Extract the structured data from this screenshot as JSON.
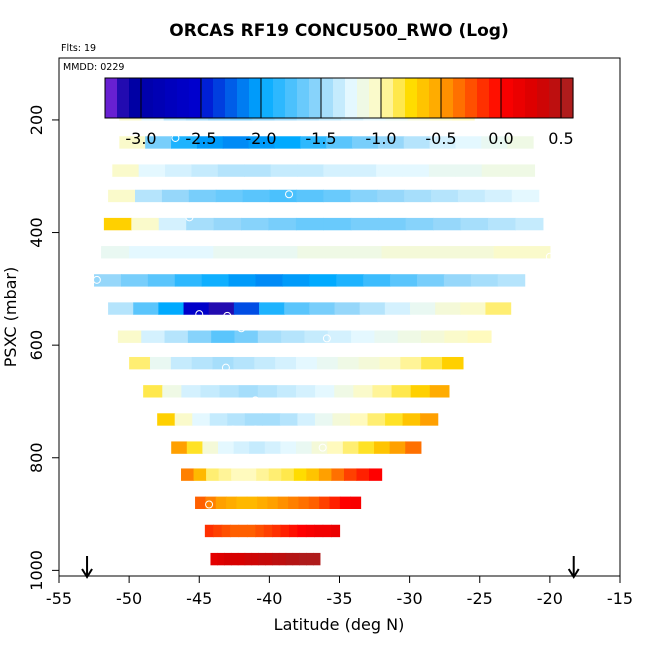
{
  "chart_data": {
    "type": "heatmap",
    "title": "ORCAS RF19 CONCU500_RWO (Log)",
    "flights_label": "Flts: 19",
    "date_label": "MMDD: 0229",
    "xlabel": "Latitude (deg N)",
    "ylabel": "PSXC (mbar)",
    "xlim": [
      -55,
      -15
    ],
    "ylim": [
      1010,
      90
    ],
    "xticks": [
      -55,
      -50,
      -45,
      -40,
      -35,
      -30,
      -25,
      -20,
      -15
    ],
    "yticks": [
      200,
      400,
      600,
      800,
      1000
    ],
    "colorbar": {
      "range": [
        -3.3,
        0.6
      ],
      "ticks": [
        "-3.0",
        "-2.5",
        "-2.0",
        "-1.5",
        "-1.0",
        "-0.5",
        "0.0",
        "0.5"
      ],
      "tick_values": [
        -3.0,
        -2.5,
        -2.0,
        -1.5,
        -1.0,
        -0.5,
        0.0,
        0.5
      ]
    },
    "range_markers_lat": [
      -53,
      -18.3
    ],
    "rows": [
      {
        "p": 190,
        "lat_min": -50.7,
        "lat_max": -25.4,
        "values": [
          -1.05,
          -1.25,
          -1.4,
          -1.45,
          -1.5,
          -1.55,
          -1.5,
          -1.45,
          -1.4,
          -1.35,
          -1.3,
          -1.25,
          -1.2,
          -1.1,
          -1.05,
          -1.0
        ]
      },
      {
        "p": 240,
        "lat_min": -50.7,
        "lat_max": -21.2,
        "values": [
          -1.05,
          -1.6,
          -1.9,
          -2.05,
          -2.1,
          -2.05,
          -2.0,
          -1.85,
          -1.7,
          -1.6,
          -1.5,
          -1.4,
          -1.3,
          -1.25,
          -1.2,
          -1.15
        ]
      },
      {
        "p": 290,
        "lat_min": -51.2,
        "lat_max": -21.1,
        "values": [
          -1.05,
          -1.25,
          -1.3,
          -1.35,
          -1.4,
          -1.4,
          -1.35,
          -1.35,
          -1.3,
          -1.3,
          -1.25,
          -1.25,
          -1.2,
          -1.2,
          -1.15,
          -1.15
        ]
      },
      {
        "p": 335,
        "lat_min": -51.5,
        "lat_max": -20.8,
        "values": [
          -1.05,
          -1.4,
          -1.5,
          -1.6,
          -1.65,
          -1.7,
          -1.75,
          -1.7,
          -1.65,
          -1.55,
          -1.5,
          -1.45,
          -1.4,
          -1.35,
          -1.3,
          -1.25
        ]
      },
      {
        "p": 385,
        "lat_min": -51.8,
        "lat_max": -20.5,
        "values": [
          -0.7,
          -1.05,
          -1.3,
          -1.45,
          -1.5,
          -1.55,
          -1.6,
          -1.65,
          -1.65,
          -1.6,
          -1.6,
          -1.55,
          -1.5,
          -1.45,
          -1.4,
          -1.35
        ]
      },
      {
        "p": 435,
        "lat_min": -52.0,
        "lat_max": -20.0,
        "values": [
          -1.2,
          -1.25,
          -1.25,
          -1.25,
          -1.2,
          -1.2,
          -1.2,
          -1.15,
          -1.15,
          -1.15,
          -1.1,
          -1.1,
          -1.1,
          -1.1,
          -1.05,
          -1.05
        ]
      },
      {
        "p": 485,
        "lat_min": -52.5,
        "lat_max": -21.8,
        "values": [
          -1.5,
          -1.6,
          -1.7,
          -1.85,
          -1.95,
          -2.05,
          -2.1,
          -2.05,
          -2.0,
          -1.9,
          -1.8,
          -1.7,
          -1.6,
          -1.5,
          -1.45,
          -1.4
        ]
      },
      {
        "p": 535,
        "lat_min": -51.5,
        "lat_max": -22.8,
        "values": [
          -1.4,
          -1.7,
          -2.0,
          -2.6,
          -3.15,
          -2.3,
          -1.9,
          -1.7,
          -1.6,
          -1.5,
          -1.4,
          -1.3,
          -1.2,
          -1.1,
          -1.05,
          -0.9
        ]
      },
      {
        "p": 585,
        "lat_min": -50.8,
        "lat_max": -24.2,
        "values": [
          -1.05,
          -1.3,
          -1.4,
          -1.55,
          -1.7,
          -1.6,
          -1.45,
          -1.4,
          -1.35,
          -1.3,
          -1.25,
          -1.2,
          -1.15,
          -1.1,
          -1.05,
          -1.0
        ]
      },
      {
        "p": 632,
        "lat_min": -50.0,
        "lat_max": -26.2,
        "values": [
          -0.9,
          -1.2,
          -1.35,
          -1.4,
          -1.45,
          -1.4,
          -1.35,
          -1.3,
          -1.25,
          -1.2,
          -1.15,
          -1.1,
          -1.05,
          -0.95,
          -0.85,
          -0.7
        ]
      },
      {
        "p": 682,
        "lat_min": -49.0,
        "lat_max": -27.2,
        "values": [
          -0.85,
          -1.15,
          -1.3,
          -1.35,
          -1.4,
          -1.45,
          -1.4,
          -1.35,
          -1.3,
          -1.25,
          -1.15,
          -1.05,
          -0.95,
          -0.85,
          -0.7,
          -0.55
        ]
      },
      {
        "p": 732,
        "lat_min": -48.0,
        "lat_max": -28.0,
        "values": [
          -0.7,
          -1.05,
          -1.25,
          -1.35,
          -1.4,
          -1.45,
          -1.45,
          -1.4,
          -1.3,
          -1.2,
          -1.1,
          -1.0,
          -0.9,
          -0.8,
          -0.65,
          -0.5
        ]
      },
      {
        "p": 782,
        "lat_min": -47.0,
        "lat_max": -29.2,
        "values": [
          -0.5,
          -0.8,
          -1.1,
          -1.25,
          -1.3,
          -1.35,
          -1.3,
          -1.25,
          -1.2,
          -1.1,
          -1.0,
          -0.9,
          -0.8,
          -0.65,
          -0.5,
          -0.35
        ]
      },
      {
        "p": 830,
        "lat_min": -46.3,
        "lat_max": -32.0,
        "values": [
          -0.4,
          -0.6,
          -0.9,
          -0.95,
          -1.0,
          -1.0,
          -0.95,
          -0.9,
          -0.85,
          -0.75,
          -0.65,
          -0.5,
          -0.35,
          -0.2,
          -0.1,
          0.0
        ]
      },
      {
        "p": 880,
        "lat_min": -45.3,
        "lat_max": -33.5,
        "values": [
          -0.3,
          -0.4,
          -0.5,
          -0.55,
          -0.6,
          -0.6,
          -0.55,
          -0.5,
          -0.45,
          -0.4,
          -0.35,
          -0.3,
          -0.2,
          -0.1,
          0.0,
          0.05
        ]
      },
      {
        "p": 930,
        "lat_min": -44.6,
        "lat_max": -35.0,
        "values": [
          -0.15,
          -0.2,
          -0.25,
          -0.3,
          -0.3,
          -0.3,
          -0.25,
          -0.2,
          -0.15,
          -0.1,
          -0.05,
          0.0,
          0.05,
          0.1,
          0.1,
          0.15
        ]
      },
      {
        "p": 980,
        "lat_min": -44.2,
        "lat_max": -36.4,
        "values": [
          0.2,
          0.25,
          0.3,
          0.3,
          0.3,
          0.35,
          0.35,
          0.4,
          0.4,
          0.45,
          0.45,
          0.5,
          0.5,
          0.55,
          0.55,
          0.55
        ]
      }
    ],
    "circles": [
      {
        "lat": -50.3,
        "p": 190
      },
      {
        "lat": -48.3,
        "p": 187
      },
      {
        "lat": -34.6,
        "p": 187
      },
      {
        "lat": -25.8,
        "p": 187
      },
      {
        "lat": -35.0,
        "p": 217
      },
      {
        "lat": -46.7,
        "p": 232
      },
      {
        "lat": -38.6,
        "p": 332
      },
      {
        "lat": -45.7,
        "p": 373
      },
      {
        "lat": -35.3,
        "p": 410
      },
      {
        "lat": -20.0,
        "p": 443
      },
      {
        "lat": -37.8,
        "p": 460
      },
      {
        "lat": -42.5,
        "p": 465
      },
      {
        "lat": -52.3,
        "p": 484
      },
      {
        "lat": -40.3,
        "p": 505
      },
      {
        "lat": -45.0,
        "p": 545
      },
      {
        "lat": -43.0,
        "p": 548
      },
      {
        "lat": -42.0,
        "p": 570
      },
      {
        "lat": -35.9,
        "p": 588
      },
      {
        "lat": -43.1,
        "p": 640
      },
      {
        "lat": -41.0,
        "p": 698
      },
      {
        "lat": -42.6,
        "p": 750
      },
      {
        "lat": -41.0,
        "p": 750
      },
      {
        "lat": -36.2,
        "p": 782
      },
      {
        "lat": -43.8,
        "p": 808
      },
      {
        "lat": -44.3,
        "p": 883
      },
      {
        "lat": -43.8,
        "p": 1000
      },
      {
        "lat": -40.0,
        "p": 1000
      },
      {
        "lat": -36.6,
        "p": 1000
      }
    ]
  }
}
